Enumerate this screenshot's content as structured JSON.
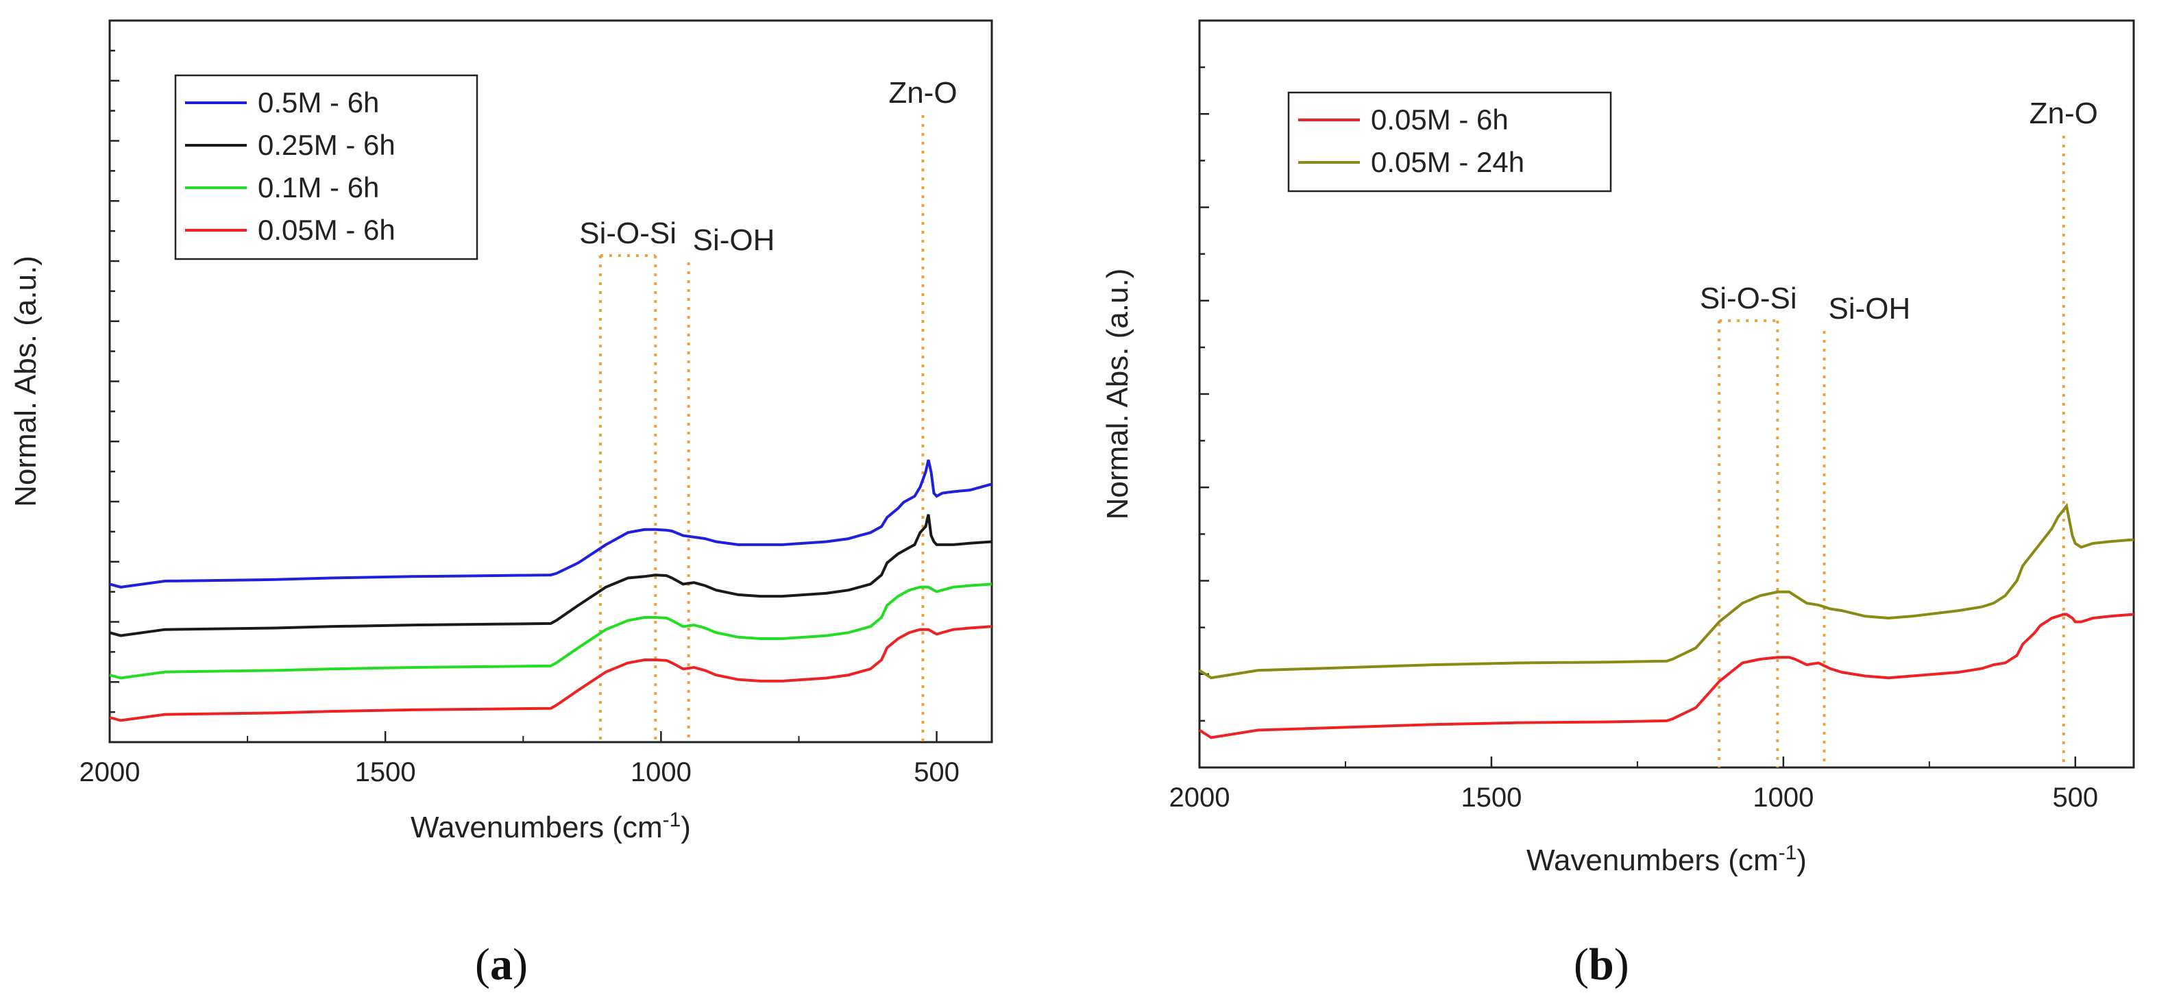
{
  "chart_data": [
    {
      "type": "line",
      "panel_label": "a",
      "xlabel": "Wavenumbers (cm",
      "xlabel_sup": "-1",
      "xlabel_close": ")",
      "ylabel": "Normal. Abs. (a.u.)",
      "xlim": [
        2000,
        400
      ],
      "x_reversed": true,
      "xticks": [
        2000,
        1500,
        1000,
        500
      ],
      "ylim": [
        0,
        1
      ],
      "yticks_labeled": false,
      "legend_position": "top-left",
      "series": [
        {
          "name": "0.5M - 6h",
          "color": "#1f1fe0",
          "offset": 0.44,
          "x": [
            2000,
            1980,
            1900,
            1700,
            1600,
            1450,
            1300,
            1200,
            1190,
            1150,
            1100,
            1060,
            1030,
            1010,
            990,
            980,
            960,
            940,
            920,
            900,
            860,
            820,
            780,
            700,
            660,
            640,
            620,
            600,
            590,
            570,
            560,
            550,
            540,
            530,
            520,
            515,
            510,
            505,
            500,
            490,
            470,
            440,
            400
          ],
          "y": [
            0.01,
            0.0,
            0.02,
            0.025,
            0.03,
            0.035,
            0.038,
            0.04,
            0.045,
            0.08,
            0.14,
            0.18,
            0.19,
            0.19,
            0.188,
            0.185,
            0.17,
            0.165,
            0.16,
            0.15,
            0.14,
            0.14,
            0.14,
            0.15,
            0.16,
            0.17,
            0.18,
            0.2,
            0.23,
            0.26,
            0.28,
            0.29,
            0.3,
            0.33,
            0.38,
            0.42,
            0.38,
            0.31,
            0.3,
            0.31,
            0.315,
            0.32,
            0.34
          ]
        },
        {
          "name": "0.25M - 6h",
          "color": "#1a1a1a",
          "offset": 0.28,
          "x": [
            2000,
            1980,
            1900,
            1700,
            1600,
            1450,
            1300,
            1200,
            1190,
            1150,
            1100,
            1060,
            1030,
            1010,
            990,
            980,
            960,
            940,
            920,
            900,
            860,
            820,
            780,
            700,
            660,
            640,
            620,
            600,
            590,
            570,
            560,
            550,
            540,
            530,
            520,
            515,
            510,
            505,
            500,
            490,
            470,
            440,
            400
          ],
          "y": [
            0.01,
            0.0,
            0.02,
            0.025,
            0.03,
            0.035,
            0.038,
            0.04,
            0.05,
            0.1,
            0.16,
            0.19,
            0.195,
            0.2,
            0.198,
            0.19,
            0.17,
            0.175,
            0.165,
            0.15,
            0.135,
            0.13,
            0.13,
            0.14,
            0.15,
            0.16,
            0.17,
            0.2,
            0.24,
            0.27,
            0.28,
            0.29,
            0.3,
            0.34,
            0.36,
            0.4,
            0.33,
            0.31,
            0.3,
            0.3,
            0.3,
            0.305,
            0.31
          ]
        },
        {
          "name": "0.1M - 6h",
          "color": "#22dd22",
          "offset": 0.14,
          "x": [
            2000,
            1980,
            1900,
            1700,
            1600,
            1450,
            1300,
            1200,
            1190,
            1150,
            1100,
            1060,
            1030,
            1010,
            990,
            980,
            960,
            940,
            920,
            900,
            860,
            820,
            780,
            700,
            660,
            640,
            620,
            600,
            590,
            570,
            560,
            550,
            540,
            530,
            520,
            515,
            510,
            505,
            500,
            490,
            470,
            440,
            400
          ],
          "y": [
            0.01,
            0.0,
            0.02,
            0.025,
            0.03,
            0.035,
            0.038,
            0.04,
            0.05,
            0.1,
            0.16,
            0.19,
            0.2,
            0.2,
            0.198,
            0.19,
            0.17,
            0.175,
            0.165,
            0.15,
            0.135,
            0.13,
            0.13,
            0.14,
            0.15,
            0.16,
            0.17,
            0.2,
            0.24,
            0.27,
            0.28,
            0.29,
            0.295,
            0.3,
            0.3,
            0.3,
            0.295,
            0.29,
            0.285,
            0.29,
            0.3,
            0.305,
            0.31
          ]
        },
        {
          "name": "0.05M - 6h",
          "color": "#ee2222",
          "offset": 0.0,
          "x": [
            2000,
            1980,
            1900,
            1700,
            1600,
            1450,
            1300,
            1200,
            1190,
            1150,
            1100,
            1060,
            1030,
            1010,
            990,
            980,
            960,
            940,
            920,
            900,
            860,
            820,
            780,
            700,
            660,
            640,
            620,
            600,
            590,
            570,
            560,
            550,
            540,
            530,
            520,
            515,
            510,
            505,
            500,
            490,
            470,
            440,
            400
          ],
          "y": [
            0.01,
            0.0,
            0.02,
            0.025,
            0.03,
            0.035,
            0.038,
            0.04,
            0.05,
            0.1,
            0.16,
            0.19,
            0.2,
            0.2,
            0.198,
            0.19,
            0.17,
            0.175,
            0.165,
            0.15,
            0.135,
            0.13,
            0.13,
            0.14,
            0.15,
            0.16,
            0.17,
            0.2,
            0.24,
            0.27,
            0.28,
            0.29,
            0.295,
            0.3,
            0.3,
            0.3,
            0.295,
            0.29,
            0.285,
            0.29,
            0.3,
            0.305,
            0.31
          ]
        }
      ],
      "markers": [
        {
          "label": "Si-O-Si",
          "x_left": 1110,
          "x_right": 1010,
          "bracket": true
        },
        {
          "label": "Si-OH",
          "x": 950
        },
        {
          "label": "Zn-O",
          "x": 525
        }
      ]
    },
    {
      "type": "line",
      "panel_label": "b",
      "xlabel": "Wavenumbers (cm",
      "xlabel_sup": "-1",
      "xlabel_close": ")",
      "ylabel": "Normal. Abs. (a.u.)",
      "xlim": [
        2000,
        400
      ],
      "x_reversed": true,
      "xticks": [
        2000,
        1500,
        1000,
        500
      ],
      "ylim": [
        0,
        1
      ],
      "yticks_labeled": false,
      "legend_position": "top-left",
      "series": [
        {
          "name": "0.05M - 6h",
          "color": "#ee2222",
          "offset": 0.0,
          "x": [
            2000,
            1980,
            1900,
            1700,
            1600,
            1450,
            1300,
            1200,
            1190,
            1150,
            1110,
            1070,
            1040,
            1010,
            990,
            980,
            960,
            940,
            920,
            900,
            860,
            820,
            780,
            700,
            660,
            640,
            620,
            600,
            590,
            570,
            560,
            550,
            540,
            530,
            520,
            515,
            510,
            505,
            500,
            490,
            470,
            440,
            400
          ],
          "y": [
            0.02,
            0.0,
            0.02,
            0.03,
            0.035,
            0.04,
            0.042,
            0.045,
            0.05,
            0.08,
            0.15,
            0.2,
            0.21,
            0.215,
            0.215,
            0.21,
            0.195,
            0.2,
            0.185,
            0.175,
            0.165,
            0.16,
            0.165,
            0.175,
            0.185,
            0.195,
            0.2,
            0.22,
            0.25,
            0.28,
            0.3,
            0.31,
            0.32,
            0.325,
            0.33,
            0.33,
            0.325,
            0.32,
            0.31,
            0.31,
            0.32,
            0.325,
            0.33
          ]
        },
        {
          "name": "0.05M - 24h",
          "color": "#8a8a14",
          "offset": 0.16,
          "x": [
            2000,
            1980,
            1900,
            1700,
            1600,
            1450,
            1300,
            1200,
            1190,
            1150,
            1110,
            1070,
            1040,
            1010,
            990,
            980,
            960,
            940,
            920,
            900,
            860,
            820,
            780,
            700,
            660,
            640,
            620,
            600,
            590,
            570,
            560,
            550,
            540,
            530,
            520,
            515,
            510,
            505,
            500,
            490,
            470,
            440,
            400
          ],
          "y": [
            0.02,
            0.0,
            0.02,
            0.03,
            0.035,
            0.04,
            0.042,
            0.045,
            0.05,
            0.08,
            0.15,
            0.2,
            0.22,
            0.23,
            0.23,
            0.22,
            0.2,
            0.195,
            0.185,
            0.18,
            0.165,
            0.16,
            0.165,
            0.18,
            0.19,
            0.2,
            0.22,
            0.26,
            0.3,
            0.34,
            0.36,
            0.38,
            0.4,
            0.43,
            0.45,
            0.46,
            0.42,
            0.38,
            0.36,
            0.35,
            0.36,
            0.365,
            0.37
          ]
        }
      ],
      "markers": [
        {
          "label": "Si-O-Si",
          "x_left": 1110,
          "x_right": 1010,
          "bracket": true
        },
        {
          "label": "Si-OH",
          "x": 930
        },
        {
          "label": "Zn-O",
          "x": 520
        }
      ]
    }
  ]
}
